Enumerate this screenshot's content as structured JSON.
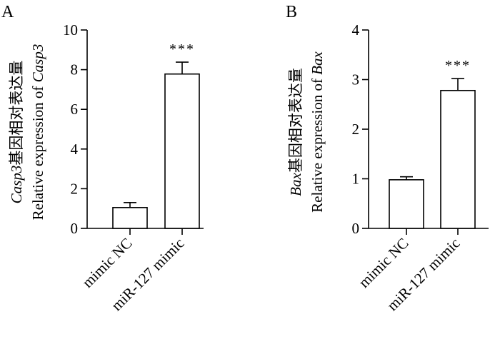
{
  "chart_data": [
    {
      "type": "bar",
      "panel_label": "A",
      "categories": [
        "mimic NC",
        "miR-127 mimic"
      ],
      "values": [
        1.05,
        7.78
      ],
      "errors": [
        0.25,
        0.6
      ],
      "significance": [
        "",
        "***"
      ],
      "ylim": [
        0,
        10
      ],
      "yticks": [
        0,
        2,
        4,
        6,
        8,
        10
      ],
      "ylabel_line1": {
        "gene": "Casp3",
        "suffix": "基因相对表达量"
      },
      "ylabel_line2": {
        "prefix": "Relative expression of ",
        "gene": "Casp3"
      },
      "xlabel": ""
    },
    {
      "type": "bar",
      "panel_label": "B",
      "categories": [
        "mimic NC",
        "miR-127 mimic"
      ],
      "values": [
        0.98,
        2.78
      ],
      "errors": [
        0.06,
        0.24
      ],
      "significance": [
        "",
        "***"
      ],
      "ylim": [
        0,
        4
      ],
      "yticks": [
        0,
        1,
        2,
        3,
        4
      ],
      "ylabel_line1": {
        "gene": "Bax",
        "suffix": "基因相对表达量"
      },
      "ylabel_line2": {
        "prefix": "Relative expression of ",
        "gene": "Bax"
      },
      "xlabel": ""
    }
  ]
}
